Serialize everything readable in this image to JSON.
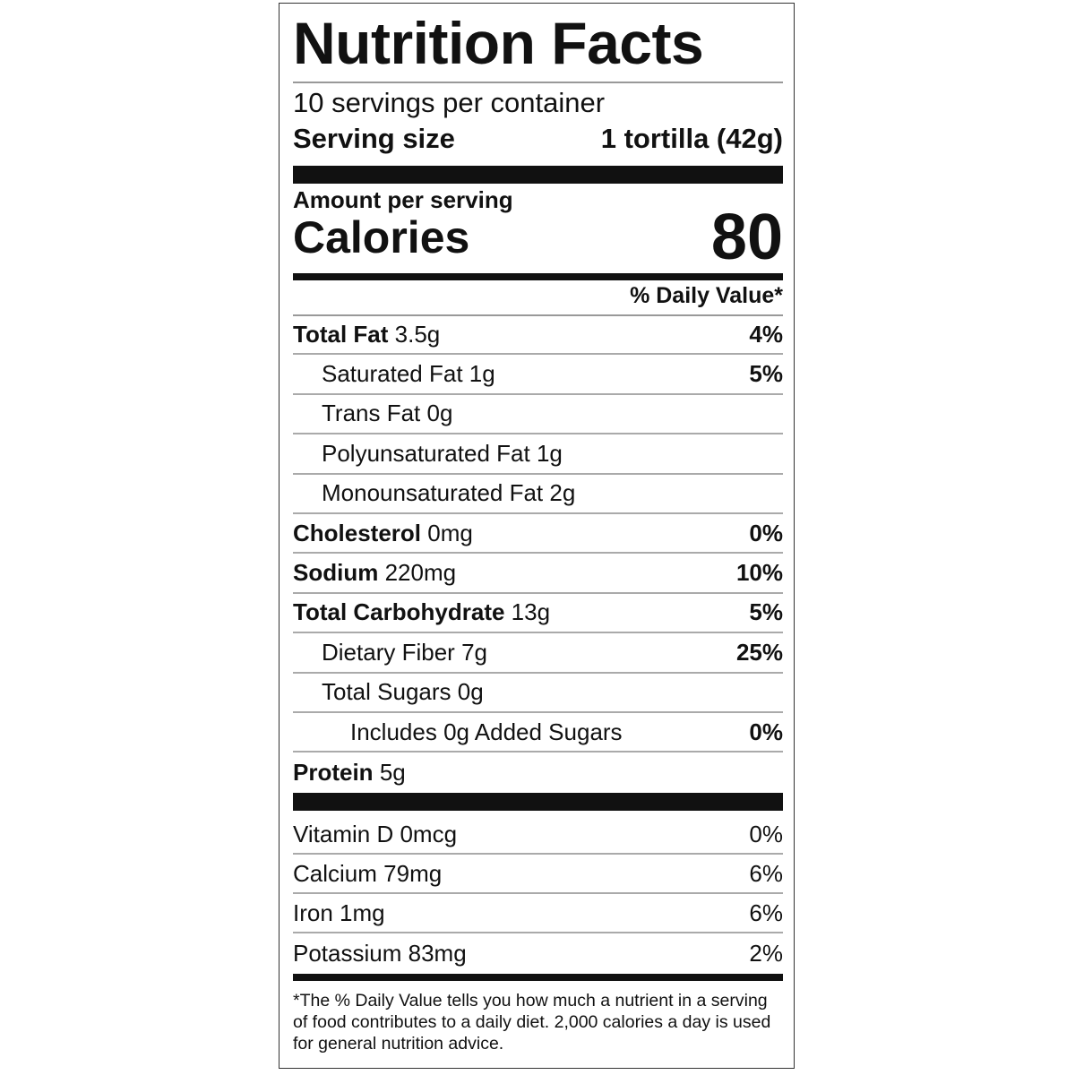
{
  "header": {
    "title": "Nutrition Facts",
    "servings": "10 servings per container",
    "serving_size_label": "Serving size",
    "serving_size": "1 tortilla (42g)"
  },
  "calories": {
    "label": "Amount per serving",
    "name": "Calories",
    "value": "80"
  },
  "daily_value_header": "% Daily Value*",
  "nutrients": [
    {
      "name": "Total Fat",
      "amount": "3.5g",
      "dv": "4%"
    },
    {
      "name": "Saturated Fat",
      "amount": "1g",
      "dv": "5%"
    },
    {
      "name": "Trans Fat",
      "amount": "0g"
    },
    {
      "name": "Polyunsaturated Fat",
      "amount": "1g"
    },
    {
      "name": "Monounsaturated Fat",
      "amount": "2g"
    },
    {
      "name": "Cholesterol",
      "amount": "0mg",
      "dv": "0%"
    },
    {
      "name": "Sodium",
      "amount": "220mg",
      "dv": "10%"
    },
    {
      "name": "Total Carbohydrate",
      "amount": "13g",
      "dv": "5%"
    },
    {
      "name": "Dietary Fiber",
      "amount": "7g",
      "dv": "25%"
    },
    {
      "name": "Total Sugars",
      "amount": "0g"
    },
    {
      "name": "Includes 0g Added Sugars",
      "dv": "0%"
    },
    {
      "name": "Protein",
      "amount": "5g"
    }
  ],
  "vitamins": [
    {
      "name": "Vitamin D",
      "amount": "0mcg",
      "dv": "0%"
    },
    {
      "name": "Calcium",
      "amount": "79mg",
      "dv": "6%"
    },
    {
      "name": "Iron",
      "amount": "1mg",
      "dv": "6%"
    },
    {
      "name": "Potassium",
      "amount": "83mg",
      "dv": "2%"
    }
  ],
  "footnote": "*The % Daily Value tells you how much a nutrient in a serving of food contributes to a daily diet. 2,000 calories a day is used for general nutrition advice."
}
